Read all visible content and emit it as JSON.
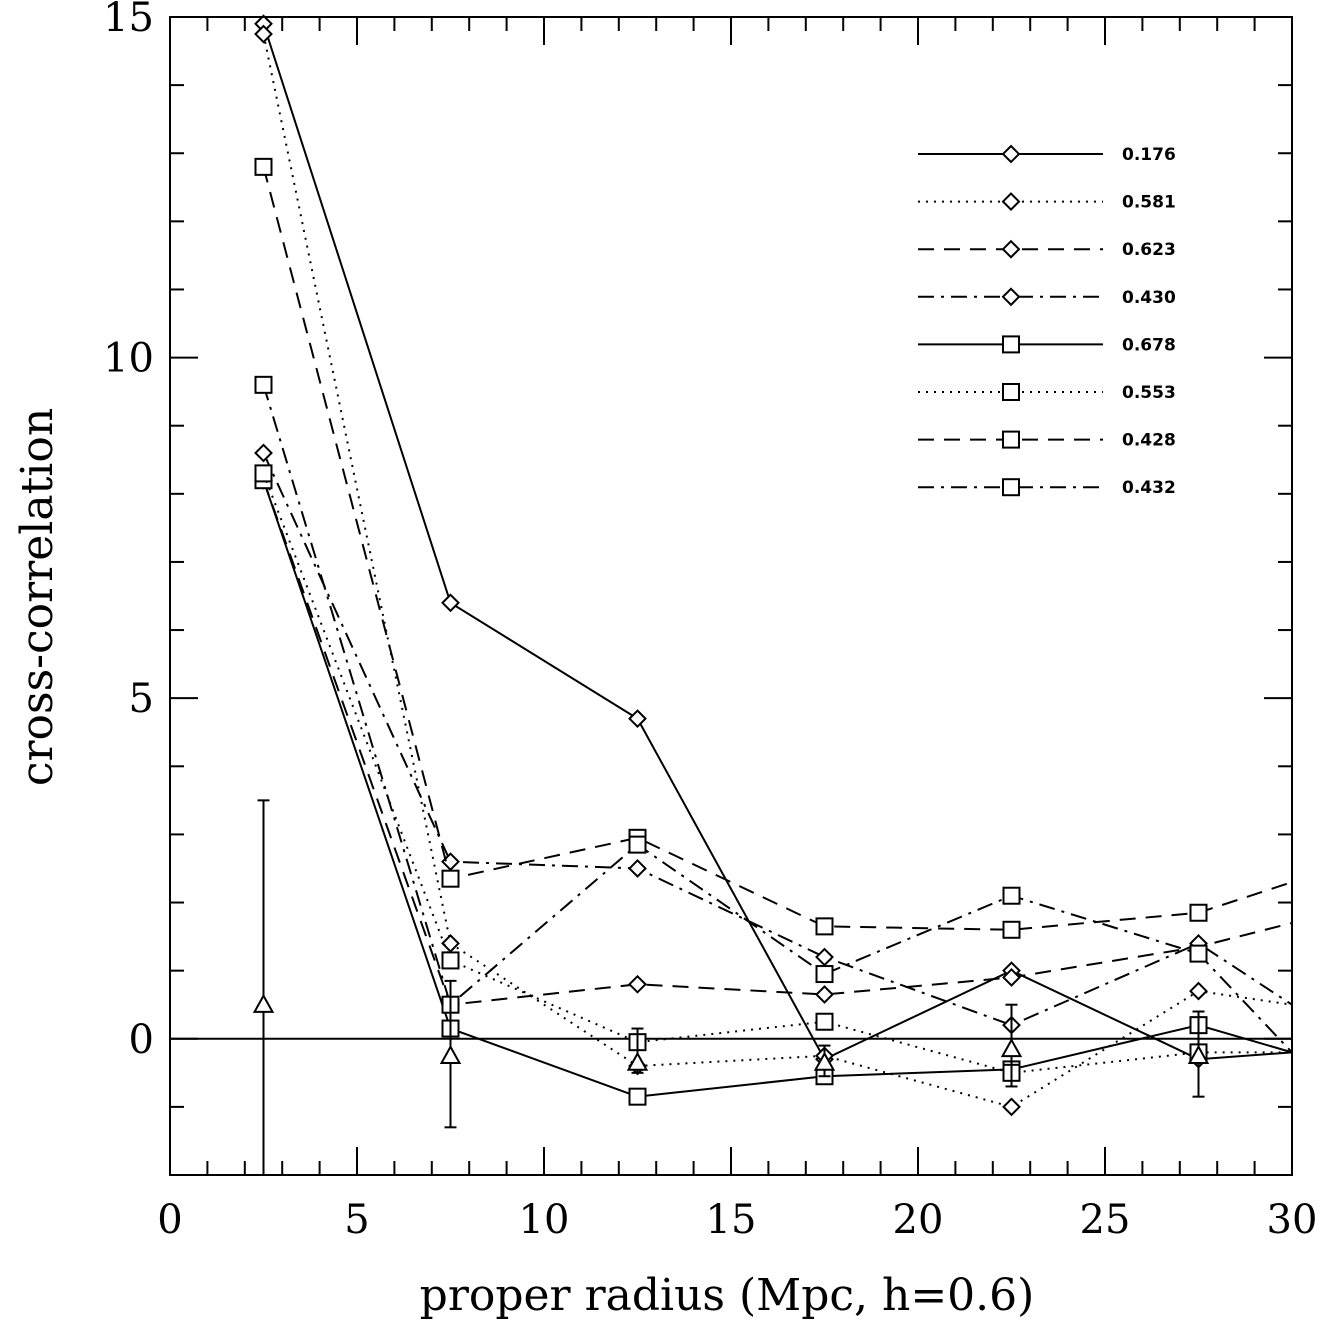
{
  "chart_data": {
    "type": "line",
    "xlabel": "proper radius   (Mpc, h=0.6)",
    "ylabel": "cross-correlation",
    "xlim": [
      0,
      30
    ],
    "ylim": [
      -2,
      15
    ],
    "xticks": [
      0,
      5,
      10,
      15,
      20,
      25,
      30
    ],
    "xtick_labels": [
      "0",
      "5",
      "10",
      "15",
      "20",
      "25",
      "30"
    ],
    "yticks": [
      0,
      5,
      10,
      15
    ],
    "ytick_labels": [
      "0",
      "5",
      "10",
      "15"
    ],
    "xminor_step": 1,
    "yminor_step": 1,
    "zero_line": 0,
    "legend_position": "top-right",
    "series": [
      {
        "name": "0.176",
        "marker": "diamond",
        "dash": "solid",
        "x": [
          2.5,
          7.5,
          12.5,
          17.5,
          22.5,
          27.5,
          30
        ],
        "values": [
          14.9,
          6.4,
          4.7,
          -0.3,
          1.0,
          -0.3,
          -0.2
        ]
      },
      {
        "name": "0.581",
        "marker": "diamond",
        "dash": "dotted",
        "x": [
          2.5,
          7.5,
          12.5,
          17.5,
          22.5,
          27.5,
          30
        ],
        "values": [
          14.75,
          1.4,
          -0.4,
          -0.25,
          -1.0,
          0.7,
          0.5
        ]
      },
      {
        "name": "0.623",
        "marker": "diamond",
        "dash": "dashed",
        "x": [
          2.5,
          7.5,
          12.5,
          17.5,
          22.5,
          27.5,
          30
        ],
        "values": [
          8.2,
          0.5,
          0.8,
          0.65,
          0.9,
          1.35,
          1.7
        ]
      },
      {
        "name": "0.430",
        "marker": "diamond",
        "dash": "dashdot",
        "x": [
          2.5,
          7.5,
          12.5,
          17.5,
          22.5,
          27.5,
          30
        ],
        "values": [
          8.6,
          2.6,
          2.5,
          1.2,
          0.2,
          1.4,
          0.5
        ]
      },
      {
        "name": "0.678",
        "marker": "square",
        "dash": "solid",
        "x": [
          2.5,
          7.5,
          12.5,
          17.5,
          22.5,
          27.5,
          30
        ],
        "values": [
          8.2,
          0.15,
          -0.85,
          -0.55,
          -0.45,
          0.2,
          -0.2
        ]
      },
      {
        "name": "0.553",
        "marker": "square",
        "dash": "dotted",
        "x": [
          2.5,
          7.5,
          12.5,
          17.5,
          22.5,
          27.5,
          30
        ],
        "values": [
          8.3,
          1.15,
          -0.05,
          0.25,
          -0.5,
          -0.2,
          -0.2
        ]
      },
      {
        "name": "0.428",
        "marker": "square",
        "dash": "dashed",
        "x": [
          2.5,
          7.5,
          12.5,
          17.5,
          22.5,
          27.5,
          30
        ],
        "values": [
          12.8,
          2.35,
          2.95,
          1.65,
          1.6,
          1.85,
          2.3
        ]
      },
      {
        "name": "0.432",
        "marker": "square",
        "dash": "dashdot",
        "x": [
          2.5,
          7.5,
          12.5,
          17.5,
          22.5,
          27.5,
          30
        ],
        "values": [
          9.6,
          0.5,
          2.85,
          0.95,
          2.1,
          1.25,
          -0.2
        ]
      }
    ],
    "mean_with_errors": {
      "marker": "triangle",
      "x": [
        2.5,
        7.5,
        12.5,
        17.5,
        22.5,
        27.5
      ],
      "values": [
        0.5,
        -0.25,
        -0.35,
        -0.35,
        -0.15,
        -0.25
      ],
      "err_low": [
        -2.0,
        -1.3,
        -0.5,
        -0.55,
        -0.7,
        -0.85
      ],
      "err_high": [
        3.5,
        0.85,
        0.15,
        -0.1,
        0.5,
        0.4
      ]
    }
  }
}
